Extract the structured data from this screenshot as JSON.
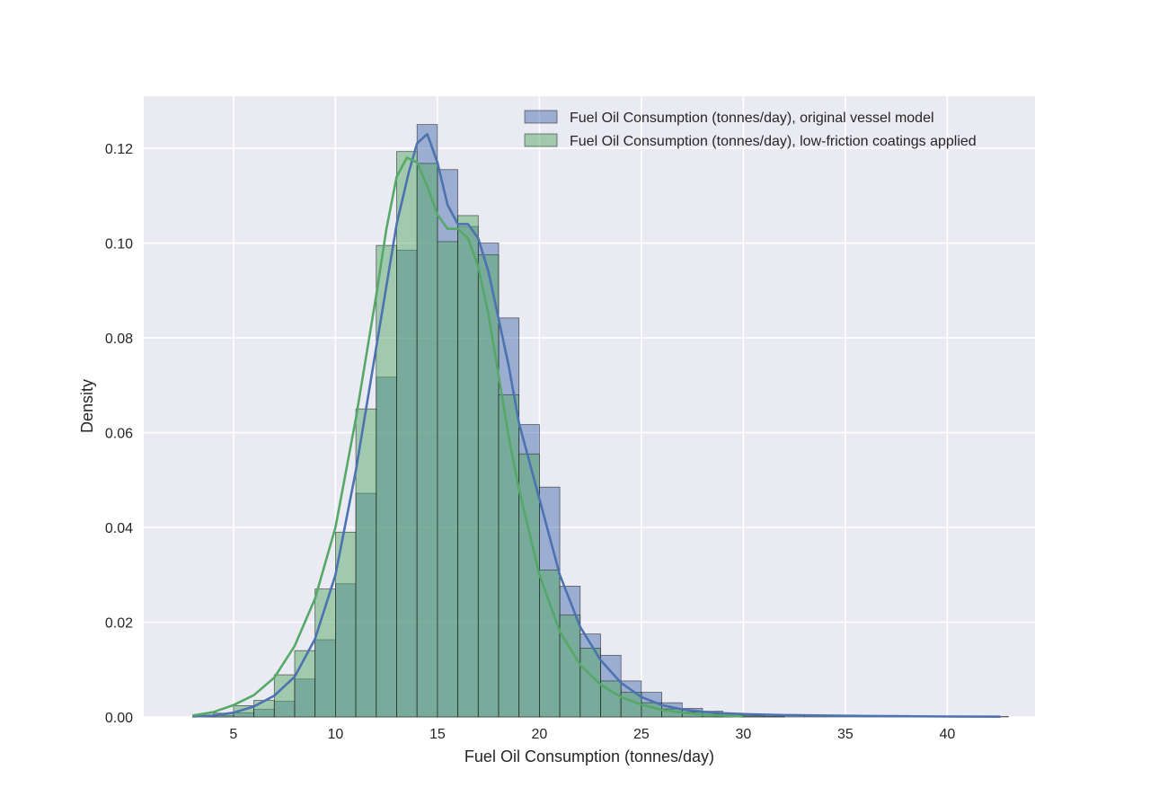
{
  "chart_data": {
    "type": "histogram",
    "xlabel": "Fuel Oil Consumption (tonnes/day)",
    "ylabel": "Density",
    "xlim": [
      0.6,
      44.3
    ],
    "ylim": [
      0,
      0.131
    ],
    "xticks": [
      5,
      10,
      15,
      20,
      25,
      30,
      35,
      40
    ],
    "yticks": [
      0.0,
      0.02,
      0.04,
      0.06,
      0.08,
      0.1,
      0.12
    ],
    "ytick_labels": [
      "0.00",
      "0.02",
      "0.04",
      "0.06",
      "0.08",
      "0.10",
      "0.12"
    ],
    "grid": true,
    "legend_position": "top-right",
    "bin_start": 3.0,
    "bin_width": 1.0,
    "series": [
      {
        "name": "Fuel Oil Consumption (tonnes/day), original vessel model",
        "fill": "#4c72b0",
        "line": "#4c72b0",
        "densities": [
          0.0001,
          0.0003,
          0.0009,
          0.0016,
          0.0033,
          0.008,
          0.0163,
          0.0281,
          0.0472,
          0.0717,
          0.0985,
          0.125,
          0.1155,
          0.1035,
          0.1,
          0.0842,
          0.0617,
          0.0485,
          0.0276,
          0.0175,
          0.013,
          0.0076,
          0.0052,
          0.003,
          0.0018,
          0.0012,
          0.0008,
          0.0005,
          0.0004,
          0.0003,
          0.0003,
          0.0003,
          0.0002,
          0.0002,
          0.0001,
          0.0001,
          0.0001,
          0.0001,
          0.0001,
          0.0001
        ],
        "kde": {
          "x": [
            3,
            4,
            5,
            6,
            7,
            8,
            9,
            10,
            11,
            12,
            13,
            13.6,
            14,
            14.5,
            15,
            15.5,
            16,
            16.5,
            17,
            17.5,
            18,
            18.5,
            19,
            20,
            21,
            22,
            23,
            24,
            25,
            26,
            27,
            28,
            29,
            30,
            32,
            34,
            36,
            38,
            40,
            42.6
          ],
          "y": [
            0.0001,
            0.0003,
            0.0009,
            0.0022,
            0.0045,
            0.0085,
            0.0165,
            0.03,
            0.052,
            0.078,
            0.104,
            0.115,
            0.121,
            0.123,
            0.117,
            0.108,
            0.104,
            0.104,
            0.101,
            0.094,
            0.084,
            0.074,
            0.062,
            0.046,
            0.03,
            0.019,
            0.012,
            0.0072,
            0.0042,
            0.0025,
            0.0016,
            0.0011,
            0.0008,
            0.0006,
            0.0004,
            0.0003,
            0.0002,
            0.00015,
            0.0001,
            5e-05
          ]
        }
      },
      {
        "name": "Fuel Oil Consumption (tonnes/day), low-friction coatings applied",
        "fill": "#55a868",
        "line": "#55a868",
        "densities": [
          0.0003,
          0.0008,
          0.0024,
          0.0035,
          0.0089,
          0.014,
          0.027,
          0.039,
          0.065,
          0.0995,
          0.1193,
          0.1168,
          0.1003,
          0.1058,
          0.0975,
          0.068,
          0.0555,
          0.031,
          0.0215,
          0.0145,
          0.0076,
          0.0052,
          0.003,
          0.0017,
          0.001,
          0.0006,
          0.0003,
          0.0002,
          0.0001,
          0,
          0,
          0,
          0,
          0,
          0,
          0,
          0,
          0,
          0,
          0
        ],
        "kde": {
          "x": [
            3,
            4,
            5,
            6,
            7,
            8,
            9,
            10,
            11,
            12,
            12.5,
            13,
            13.5,
            14,
            14.5,
            15,
            15.5,
            16,
            16.5,
            17,
            17.5,
            18,
            18.5,
            19,
            20,
            21,
            22,
            23,
            24,
            25,
            26,
            27,
            28,
            29,
            30
          ],
          "y": [
            0.0003,
            0.001,
            0.0025,
            0.0046,
            0.0083,
            0.015,
            0.025,
            0.04,
            0.063,
            0.089,
            0.103,
            0.114,
            0.118,
            0.117,
            0.112,
            0.106,
            0.103,
            0.103,
            0.101,
            0.095,
            0.085,
            0.072,
            0.059,
            0.048,
            0.03,
            0.018,
            0.011,
            0.0068,
            0.0042,
            0.0026,
            0.0015,
            0.0009,
            0.0005,
            0.0003,
            0.0001
          ]
        }
      }
    ]
  }
}
